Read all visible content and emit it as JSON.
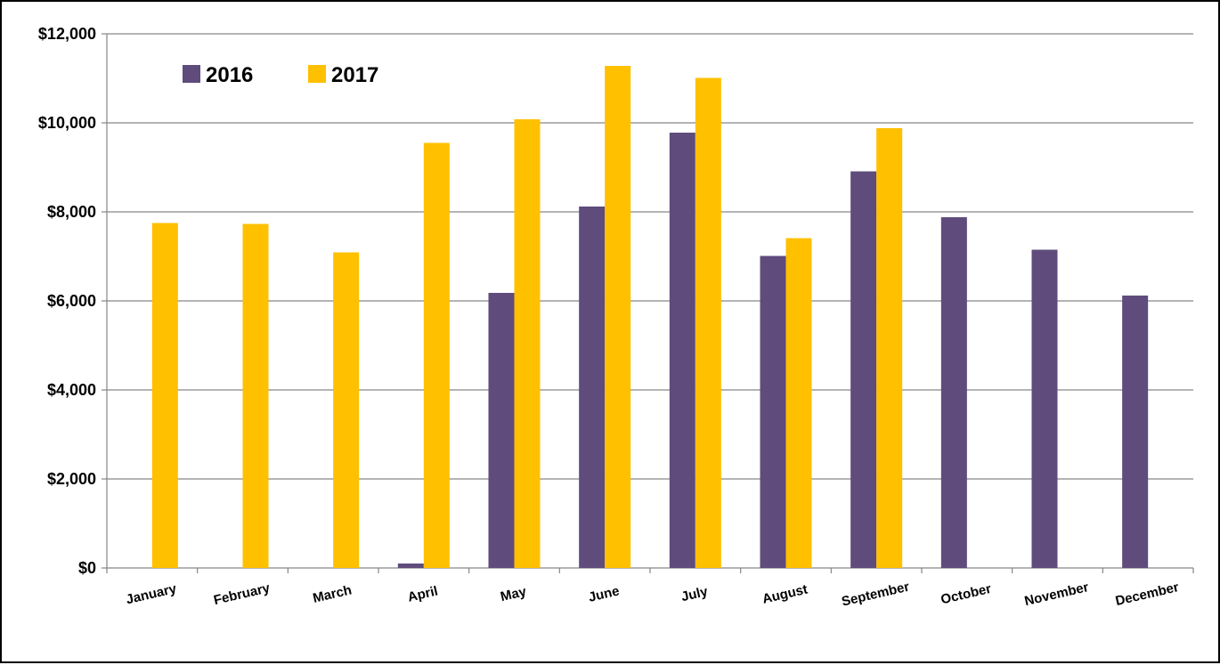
{
  "chart_data": {
    "type": "bar",
    "categories": [
      "January",
      "February",
      "March",
      "April",
      "May",
      "June",
      "July",
      "August",
      "September",
      "October",
      "November",
      "December"
    ],
    "series": [
      {
        "name": "2016",
        "color": "#5f4b7c",
        "values": [
          null,
          null,
          null,
          100,
          6180,
          8120,
          9780,
          7010,
          8910,
          7880,
          7150,
          6120
        ]
      },
      {
        "name": "2017",
        "color": "#ffc000",
        "values": [
          7750,
          7730,
          7090,
          9550,
          10080,
          11280,
          11010,
          7410,
          9880,
          null,
          null,
          null
        ]
      }
    ],
    "ylim": [
      0,
      12000
    ],
    "yticks": [
      "$0",
      "$2,000",
      "$4,000",
      "$6,000",
      "$8,000",
      "$10,000",
      "$12,000"
    ],
    "ytick_values": [
      0,
      2000,
      4000,
      6000,
      8000,
      10000,
      12000
    ],
    "grid": true,
    "legend": "top-left",
    "title": "",
    "xlabel": "",
    "ylabel": ""
  }
}
